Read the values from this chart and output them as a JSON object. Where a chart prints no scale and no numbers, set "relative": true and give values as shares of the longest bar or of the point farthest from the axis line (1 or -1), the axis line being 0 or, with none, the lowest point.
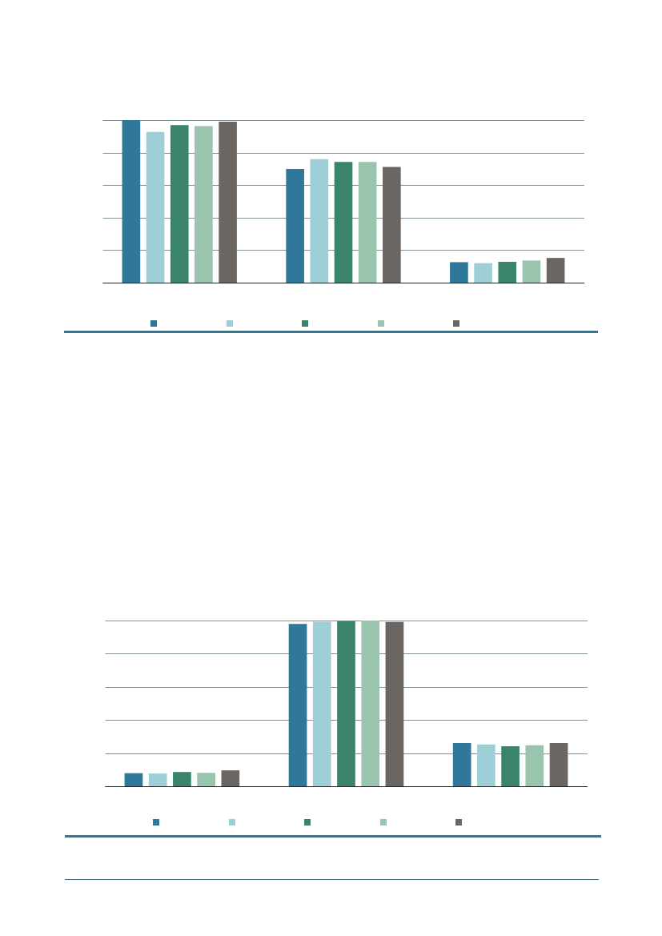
{
  "chart_data": [
    {
      "type": "bar",
      "relative": true,
      "categories": [
        null,
        null,
        null
      ],
      "grid": "y",
      "series": [
        {
          "color": "#2f7899",
          "values": [
            1.0,
            0.7,
            0.126
          ]
        },
        {
          "color": "#9fcfd6",
          "values": [
            0.927,
            0.76,
            0.12
          ]
        },
        {
          "color": "#3a8469",
          "values": [
            0.969,
            0.743,
            0.128
          ]
        },
        {
          "color": "#99c4ae",
          "values": [
            0.963,
            0.743,
            0.136
          ]
        },
        {
          "color": "#6b6662",
          "values": [
            0.99,
            0.712,
            0.152
          ]
        }
      ]
    },
    {
      "type": "bar",
      "relative": true,
      "categories": [
        null,
        null,
        null
      ],
      "grid": "y",
      "series": [
        {
          "color": "#2f7899",
          "values": [
            0.079,
            0.98,
            0.261
          ]
        },
        {
          "color": "#9fcfd6",
          "values": [
            0.077,
            0.993,
            0.252
          ]
        },
        {
          "color": "#3a8469",
          "values": [
            0.086,
            0.996,
            0.241
          ]
        },
        {
          "color": "#99c4ae",
          "values": [
            0.081,
            1.0,
            0.248
          ]
        },
        {
          "color": "#6b6662",
          "values": [
            0.096,
            0.991,
            0.261
          ]
        }
      ]
    }
  ]
}
